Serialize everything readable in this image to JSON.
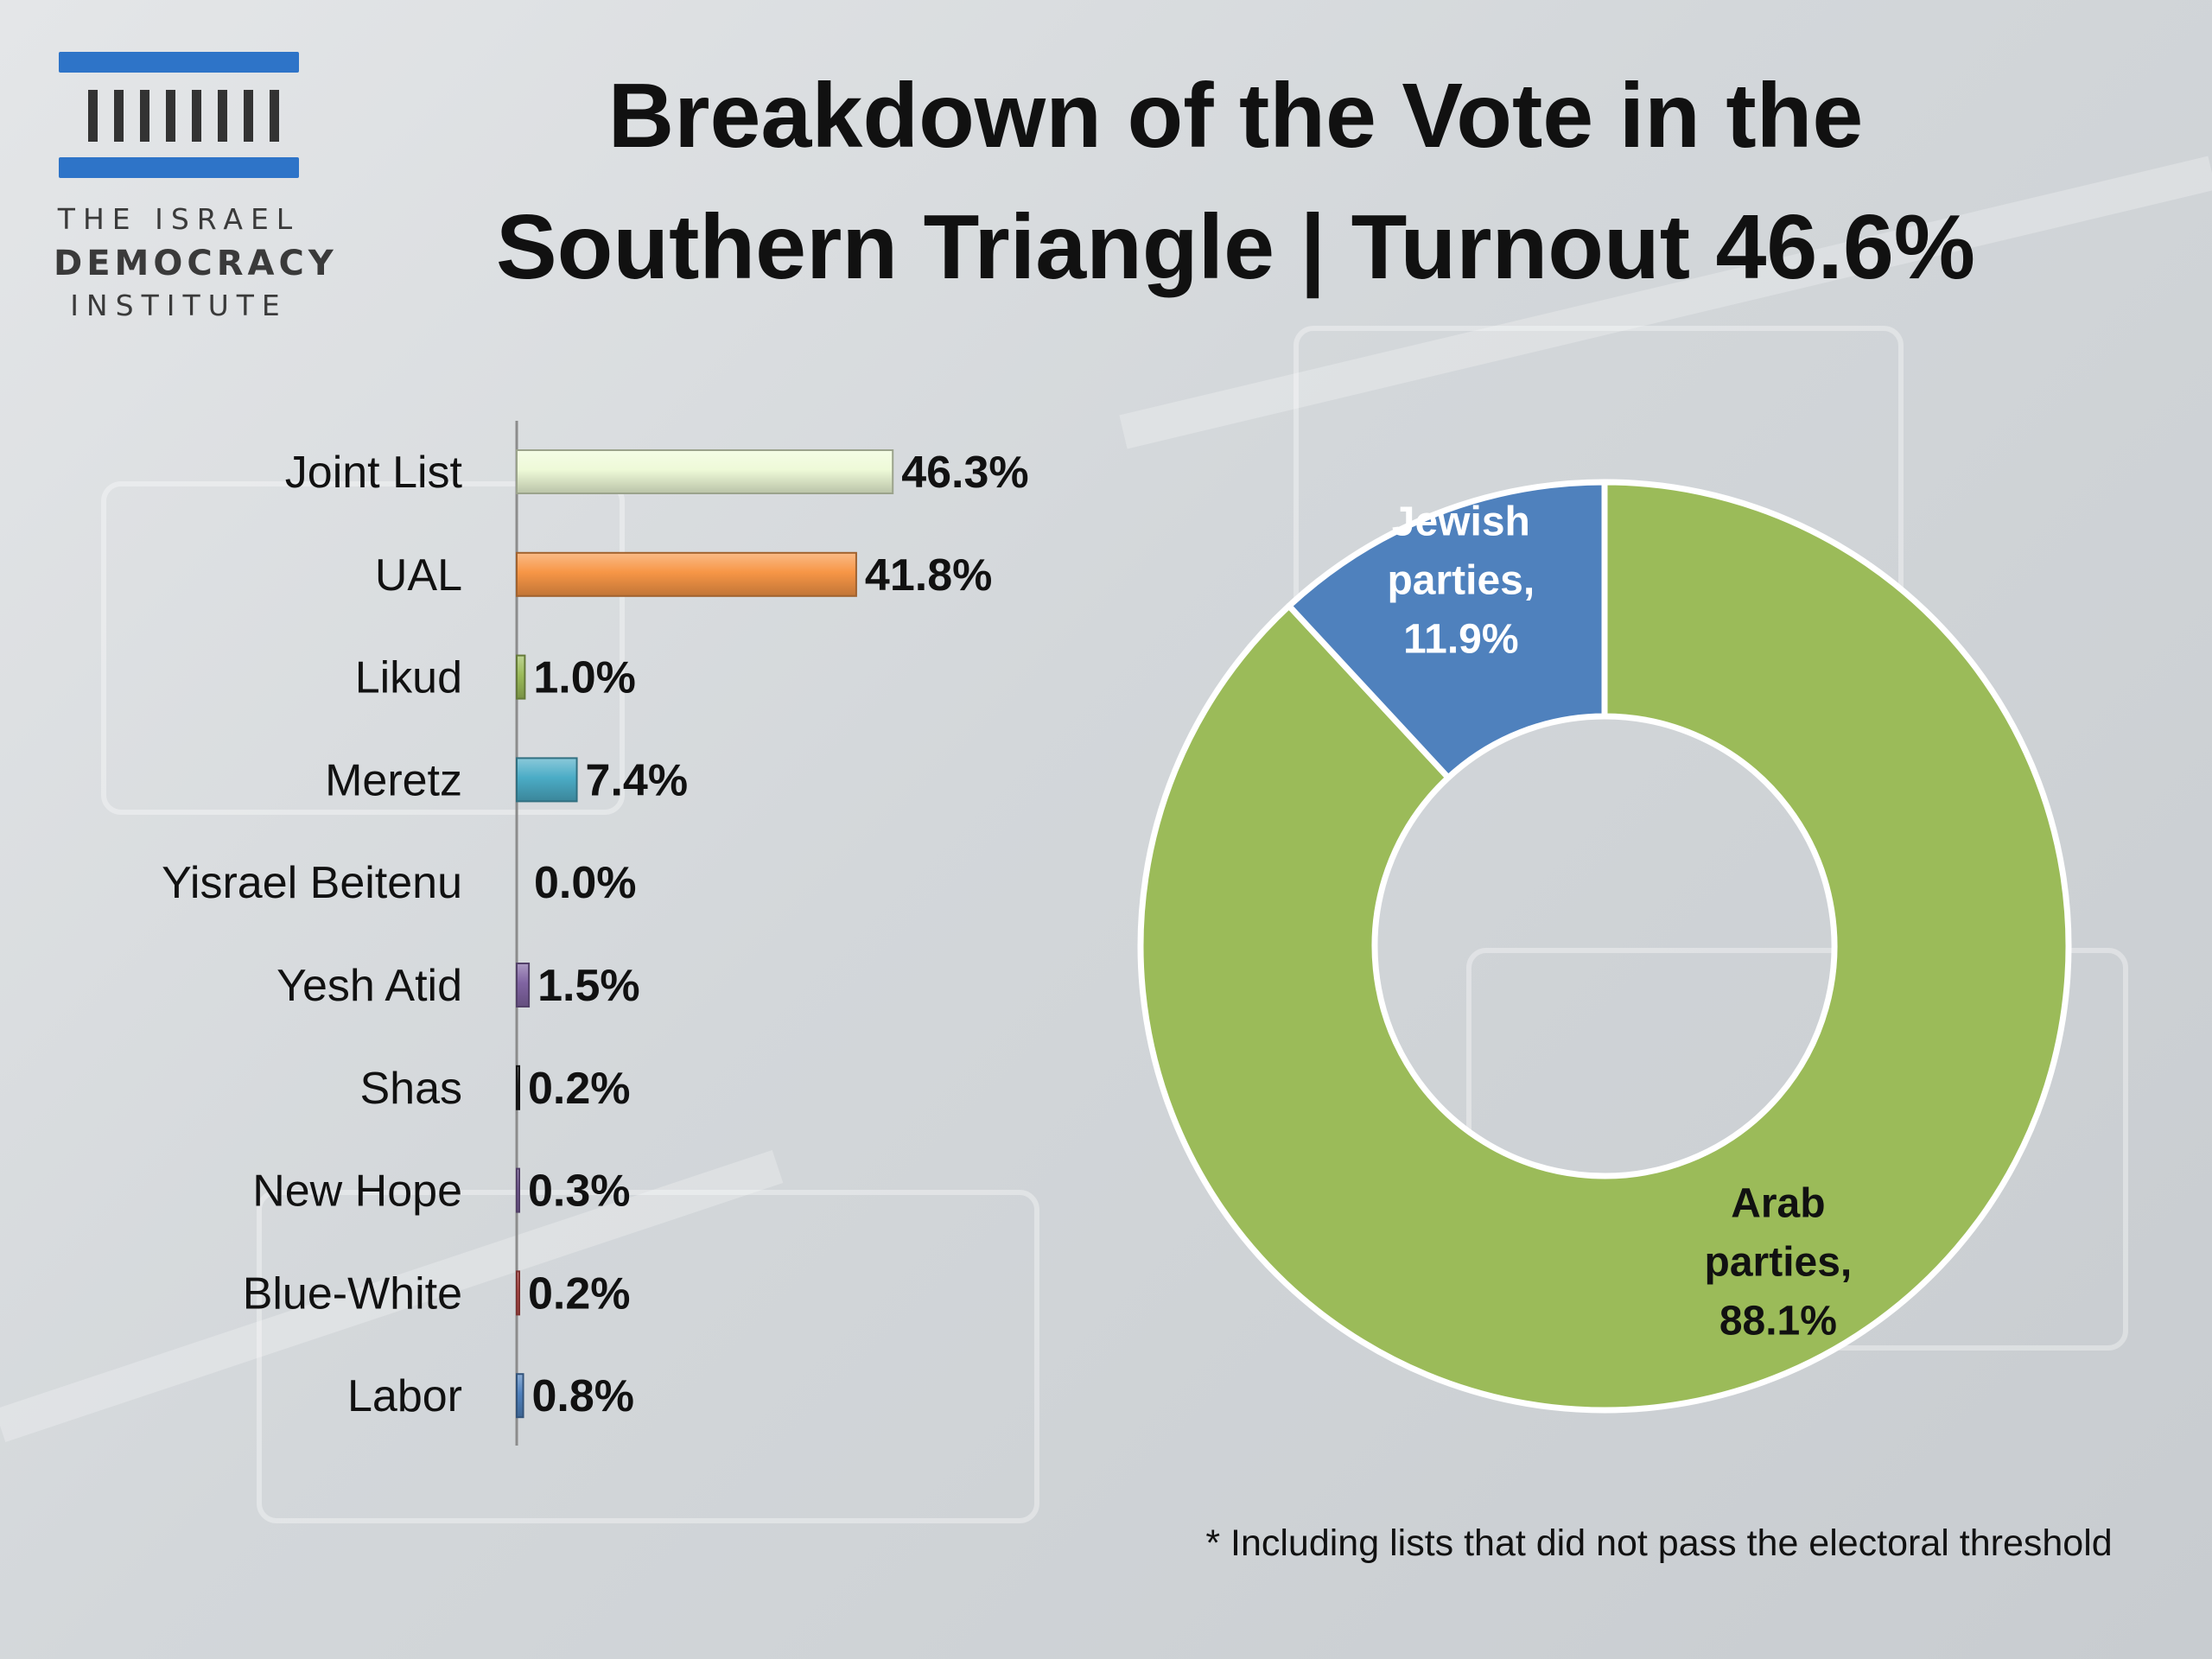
{
  "title_line1": "Breakdown of the Vote in the",
  "title_line2": "Southern Triangle | Turnout 46.6%",
  "logo": {
    "line1": "THE ISRAEL",
    "line2": "DEMOCRACY",
    "line3": "INSTITUTE",
    "color": "#2e74c8"
  },
  "footnote": "* Including lists that did not pass the electoral threshold",
  "chart_data": [
    {
      "type": "bar",
      "orientation": "horizontal",
      "categories": [
        "Joint List",
        "UAL",
        "Likud",
        "Meretz",
        "Yisrael Beitenu",
        "Yesh Atid",
        "Shas",
        "New Hope",
        "Blue-White",
        "Labor"
      ],
      "values": [
        46.3,
        41.8,
        1.0,
        7.4,
        0.0,
        1.5,
        0.2,
        0.3,
        0.2,
        0.8
      ],
      "value_labels": [
        "46.3%",
        "41.8%",
        "1.0%",
        "7.4%",
        "0.0%",
        "1.5%",
        "0.2%",
        "0.3%",
        "0.2%",
        "0.8%"
      ],
      "colors": [
        "#eefad8",
        "#f79646",
        "#9bbb59",
        "#4bacc6",
        "#c0504d",
        "#8064a2",
        "#1f1f1f",
        "#8064a2",
        "#c0504d",
        "#4f81bd"
      ],
      "xlim": [
        0,
        50
      ],
      "grid": false
    },
    {
      "type": "pie",
      "style": "donut",
      "labels": [
        "Arab parties",
        "Jewish parties"
      ],
      "values": [
        88.1,
        11.9
      ],
      "display_labels": [
        [
          "Arab",
          "parties,",
          "88.1%"
        ],
        [
          "Jewish",
          "parties,",
          "11.9%"
        ]
      ],
      "colors": [
        "#9bbb59",
        "#4f81bd"
      ],
      "label_colors": [
        "#111111",
        "#ffffff"
      ]
    }
  ]
}
